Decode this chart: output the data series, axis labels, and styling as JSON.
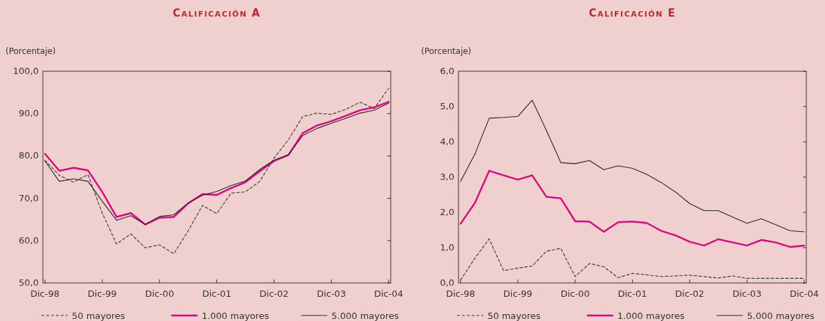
{
  "chart_data": [
    {
      "type": "line",
      "title": "Calificación A",
      "ylabel": "(Porcentaje)",
      "legend": "bottom",
      "grid": false,
      "categories": [
        "Dic-98",
        null,
        null,
        null,
        "Dic-99",
        null,
        null,
        null,
        "Dic-00",
        null,
        null,
        null,
        "Dic-01",
        null,
        null,
        null,
        "Dic-02",
        null,
        null,
        null,
        "Dic-03",
        null,
        null,
        null,
        "Dic-04"
      ],
      "ylim": [
        50,
        100
      ],
      "yticks": [
        {
          "value": 50,
          "label": "50,0"
        },
        {
          "value": 60,
          "label": "60,0"
        },
        {
          "value": 70,
          "label": "70,0"
        },
        {
          "value": 80,
          "label": "80,0"
        },
        {
          "value": 90,
          "label": "90,0"
        },
        {
          "value": 100,
          "label": "100,0"
        }
      ],
      "series": [
        {
          "name": "50 mayores",
          "color": "#333333",
          "line_style": "dashed",
          "values": [
            79.0,
            75.4,
            73.8,
            75.6,
            66.5,
            59.2,
            61.6,
            58.3,
            59.0,
            56.9,
            62.3,
            68.3,
            66.4,
            71.2,
            71.5,
            74.0,
            79.5,
            83.8,
            89.3,
            90.1,
            89.8,
            91.0,
            92.7,
            91.2,
            96.0
          ]
        },
        {
          "name": "1.000 mayores",
          "color": "#e6007e",
          "line_style": "solid",
          "values": [
            80.5,
            76.5,
            77.2,
            76.6,
            71.5,
            65.6,
            66.5,
            63.8,
            65.4,
            65.6,
            68.8,
            71.0,
            70.8,
            72.4,
            73.8,
            76.4,
            78.8,
            80.2,
            85.4,
            87.2,
            88.2,
            89.5,
            90.8,
            91.5,
            92.8
          ]
        },
        {
          "name": "5.000 mayores",
          "color": "#222222",
          "line_style": "solid",
          "values": [
            78.8,
            74.0,
            74.6,
            74.0,
            69.3,
            64.8,
            65.9,
            63.8,
            65.7,
            66.1,
            68.9,
            70.7,
            71.6,
            73.0,
            74.1,
            76.8,
            79.0,
            80.3,
            84.8,
            86.5,
            87.7,
            88.9,
            90.1,
            90.8,
            92.5
          ]
        }
      ]
    },
    {
      "type": "line",
      "title": "Calificación E",
      "ylabel": "(Porcentaje)",
      "legend": "bottom",
      "grid": false,
      "categories": [
        "Dic-98",
        null,
        null,
        null,
        "Dic-99",
        null,
        null,
        null,
        "Dic-00",
        null,
        null,
        null,
        "Dic-01",
        null,
        null,
        null,
        "Dic-02",
        null,
        null,
        null,
        "Dic-03",
        null,
        null,
        null,
        "Dic-04"
      ],
      "ylim": [
        0,
        6
      ],
      "yticks": [
        {
          "value": 0,
          "label": "0,0"
        },
        {
          "value": 1,
          "label": "1,0"
        },
        {
          "value": 2,
          "label": "2,0"
        },
        {
          "value": 3,
          "label": "3,0"
        },
        {
          "value": 4,
          "label": "4,0"
        },
        {
          "value": 5,
          "label": "5,0"
        },
        {
          "value": 6,
          "label": "6,0"
        }
      ],
      "series": [
        {
          "name": "50 mayores",
          "color": "#333333",
          "line_style": "dashed",
          "values": [
            0.08,
            0.7,
            1.25,
            0.35,
            0.42,
            0.48,
            0.9,
            0.98,
            0.18,
            0.55,
            0.46,
            0.15,
            0.27,
            0.23,
            0.18,
            0.2,
            0.22,
            0.18,
            0.14,
            0.2,
            0.13,
            0.13,
            0.13,
            0.13,
            0.13
          ]
        },
        {
          "name": "1.000 mayores",
          "color": "#e6007e",
          "line_style": "solid",
          "values": [
            1.68,
            2.27,
            3.18,
            3.05,
            2.93,
            3.05,
            2.44,
            2.4,
            1.75,
            1.74,
            1.45,
            1.72,
            1.74,
            1.7,
            1.48,
            1.35,
            1.17,
            1.06,
            1.24,
            1.15,
            1.06,
            1.22,
            1.15,
            1.02,
            1.06
          ]
        },
        {
          "name": "5.000 mayores",
          "color": "#222222",
          "line_style": "solid",
          "values": [
            2.88,
            3.65,
            4.67,
            4.69,
            4.72,
            5.18,
            4.32,
            3.41,
            3.38,
            3.47,
            3.21,
            3.32,
            3.25,
            3.08,
            2.85,
            2.58,
            2.25,
            2.05,
            2.05,
            1.87,
            1.69,
            1.82,
            1.65,
            1.48,
            1.45
          ]
        }
      ]
    }
  ]
}
